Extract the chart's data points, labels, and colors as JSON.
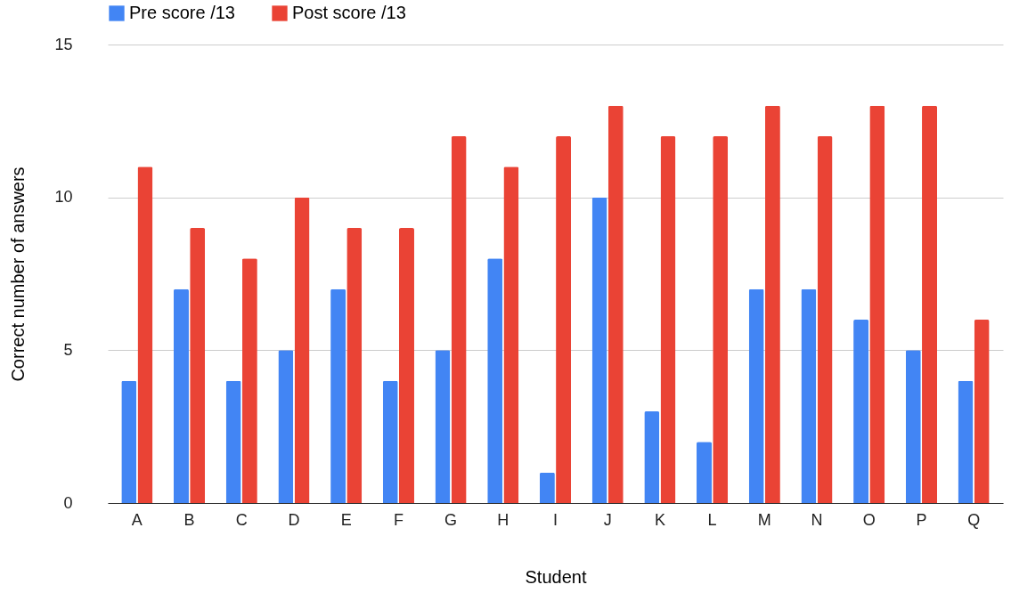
{
  "chart_data": {
    "type": "bar",
    "xlabel": "Student",
    "ylabel": "Correct number of answers",
    "categories": [
      "A",
      "B",
      "C",
      "D",
      "E",
      "F",
      "G",
      "H",
      "I",
      "J",
      "K",
      "L",
      "M",
      "N",
      "O",
      "P",
      "Q"
    ],
    "series": [
      {
        "name": "Pre score /13",
        "color": "#4285f4",
        "values": [
          4,
          7,
          4,
          5,
          7,
          4,
          5,
          8,
          1,
          10,
          3,
          2,
          7,
          7,
          6,
          5,
          4
        ]
      },
      {
        "name": "Post score /13",
        "color": "#ea4335",
        "values": [
          11,
          9,
          8,
          10,
          9,
          9,
          12,
          11,
          12,
          13,
          12,
          12,
          13,
          12,
          13,
          13,
          6
        ]
      }
    ],
    "ylim": [
      0,
      15
    ],
    "yticks": [
      0,
      5,
      10,
      15
    ],
    "grid": "y",
    "legend": "top"
  }
}
